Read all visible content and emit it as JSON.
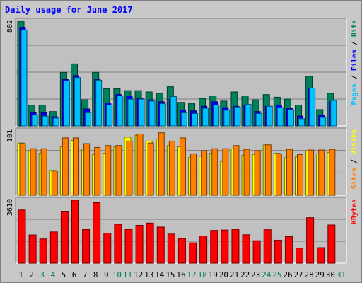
{
  "title": "Daily usage for June 2017",
  "colors": {
    "hits": "#00805c",
    "files": "#0000ff",
    "pages": "#00c0ff",
    "visits": "#ffff00",
    "sites": "#ff8000",
    "kbytes": "#ff0000",
    "panel": "#c0c0c0",
    "day_normal": "#000000",
    "day_weekend": "#00805c"
  },
  "chart_data": [
    {
      "type": "bar",
      "name": "hits-files-pages",
      "max_label": "802",
      "ylim": [
        0,
        802
      ],
      "series_labels": [
        {
          "key": "pages",
          "text": "Pages"
        },
        {
          "key": "sep",
          "text": " / "
        },
        {
          "key": "files",
          "text": "Files"
        },
        {
          "key": "sep",
          "text": " / "
        },
        {
          "key": "hits",
          "text": "Hits"
        }
      ],
      "categories": [
        "1",
        "2",
        "3",
        "4",
        "5",
        "6",
        "7",
        "8",
        "9",
        "10",
        "11",
        "12",
        "13",
        "14",
        "15",
        "16",
        "17",
        "18",
        "19",
        "20",
        "21",
        "22",
        "23",
        "24",
        "25",
        "26",
        "27",
        "28",
        "29",
        "30",
        "31"
      ],
      "series": [
        {
          "name": "Hits",
          "values": [
            802,
            160,
            160,
            110,
            410,
            475,
            200,
            410,
            285,
            285,
            270,
            270,
            260,
            250,
            300,
            180,
            170,
            210,
            230,
            190,
            260,
            230,
            200,
            240,
            220,
            205,
            160,
            380,
            125,
            250,
            0
          ]
        },
        {
          "name": "Files",
          "values": [
            755,
            100,
            100,
            70,
            355,
            385,
            130,
            355,
            175,
            240,
            230,
            210,
            200,
            185,
            205,
            120,
            115,
            150,
            185,
            140,
            150,
            160,
            110,
            150,
            160,
            135,
            75,
            290,
            80,
            185,
            0
          ]
        },
        {
          "name": "Pages",
          "values": [
            735,
            85,
            75,
            60,
            345,
            370,
            100,
            350,
            160,
            230,
            205,
            205,
            190,
            170,
            225,
            100,
            95,
            135,
            160,
            120,
            145,
            165,
            95,
            150,
            140,
            125,
            55,
            290,
            65,
            195,
            0
          ]
        }
      ]
    },
    {
      "type": "bar",
      "name": "visits-sites",
      "max_label": "101",
      "ylim": [
        0,
        101
      ],
      "series_labels": [
        {
          "key": "sites",
          "text": "Sites"
        },
        {
          "key": "sep",
          "text": " / "
        },
        {
          "key": "visits",
          "text": "Visits"
        }
      ],
      "categories": [
        "1",
        "2",
        "3",
        "4",
        "5",
        "6",
        "7",
        "8",
        "9",
        "10",
        "11",
        "12",
        "13",
        "14",
        "15",
        "16",
        "17",
        "18",
        "19",
        "20",
        "21",
        "22",
        "23",
        "24",
        "25",
        "26",
        "27",
        "28",
        "29",
        "30",
        "31"
      ],
      "series": [
        {
          "name": "Visits",
          "values": [
            82,
            69,
            66,
            39,
            76,
            86,
            71,
            64,
            66,
            76,
            91,
            94,
            85,
            88,
            78,
            76,
            59,
            61,
            66,
            53,
            73,
            63,
            64,
            79,
            66,
            59,
            60,
            70,
            65,
            67,
            0
          ]
        },
        {
          "name": "Sites",
          "values": [
            81,
            73,
            73,
            38,
            90,
            90,
            81,
            75,
            78,
            78,
            85,
            96,
            82,
            98,
            85,
            90,
            65,
            70,
            73,
            73,
            78,
            72,
            70,
            79,
            65,
            72,
            64,
            71,
            71,
            72,
            0
          ]
        }
      ]
    },
    {
      "type": "bar",
      "name": "kbytes",
      "max_label": "3610",
      "ylim": [
        0,
        3610
      ],
      "series_labels": [
        {
          "key": "kbytes",
          "text": "KBytes"
        }
      ],
      "categories": [
        "1",
        "2",
        "3",
        "4",
        "5",
        "6",
        "7",
        "8",
        "9",
        "10",
        "11",
        "12",
        "13",
        "14",
        "15",
        "16",
        "17",
        "18",
        "19",
        "20",
        "21",
        "22",
        "23",
        "24",
        "25",
        "26",
        "27",
        "28",
        "29",
        "30",
        "31"
      ],
      "series": [
        {
          "name": "KBytes",
          "values": [
            3050,
            1620,
            1390,
            1790,
            2980,
            3610,
            1930,
            3470,
            1720,
            2230,
            1940,
            2170,
            2300,
            2070,
            1670,
            1410,
            1170,
            1560,
            1880,
            1900,
            1940,
            1630,
            1290,
            1920,
            1320,
            1520,
            860,
            2610,
            890,
            2190,
            0
          ]
        }
      ]
    }
  ],
  "day_labels": [
    "1",
    "2",
    "3",
    "4",
    "5",
    "6",
    "7",
    "8",
    "9",
    "10",
    "11",
    "12",
    "13",
    "14",
    "15",
    "16",
    "17",
    "18",
    "19",
    "20",
    "21",
    "22",
    "23",
    "24",
    "25",
    "26",
    "27",
    "28",
    "29",
    "30",
    "31"
  ],
  "weekend_days": [
    "3",
    "4",
    "10",
    "11",
    "17",
    "18",
    "24",
    "25",
    "31"
  ]
}
